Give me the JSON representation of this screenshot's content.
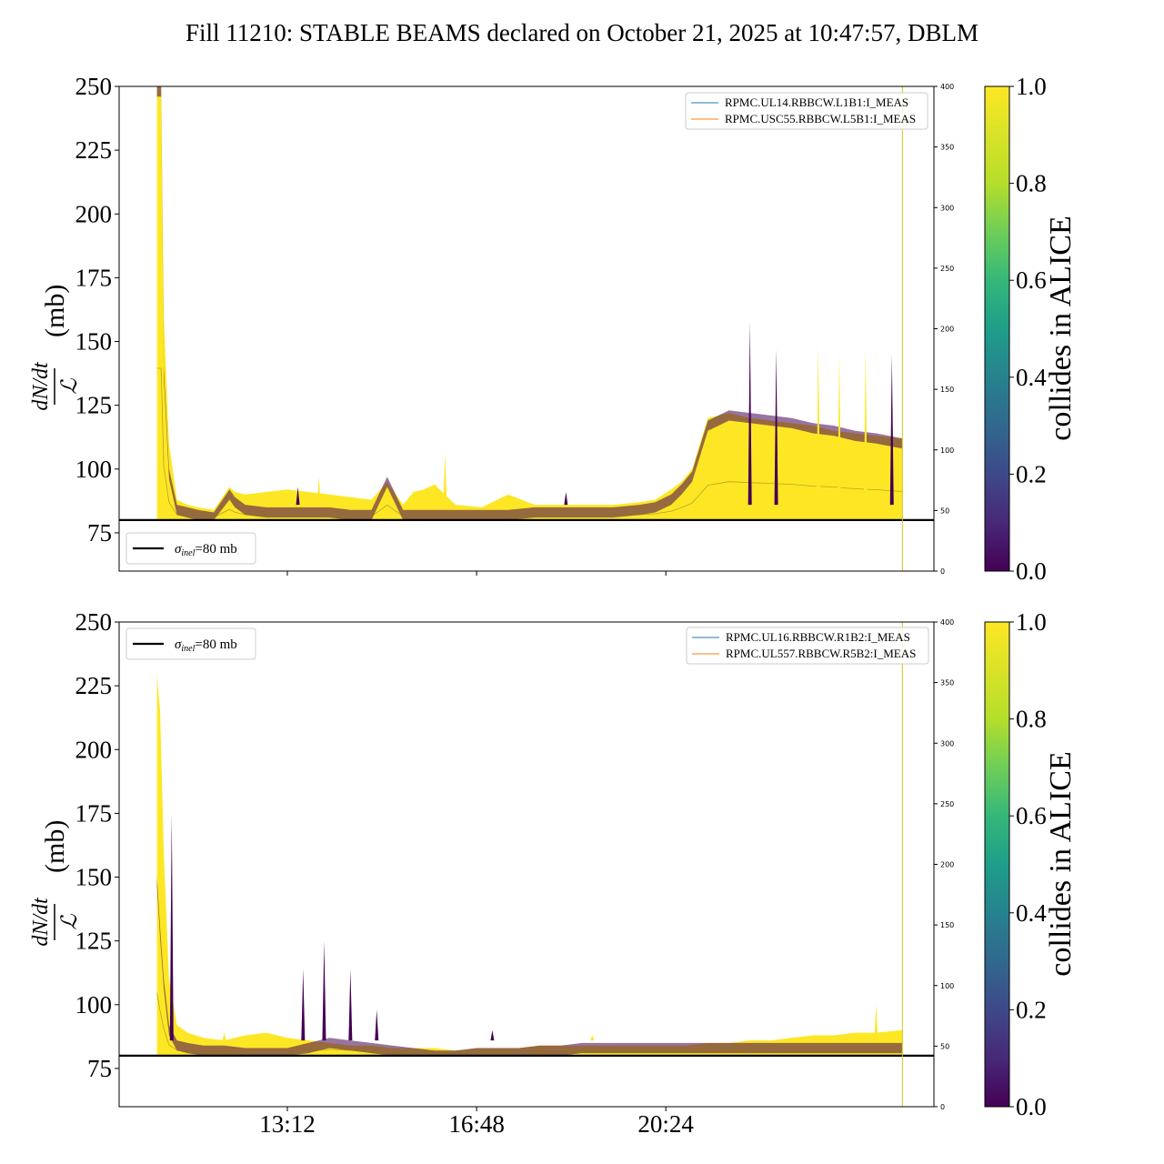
{
  "title": "Fill 11210: STABLE BEAMS declared on October 21, 2025 at 10:47:57, DBLM",
  "colors": {
    "yellow": "#fde725",
    "purple": "#440154",
    "blue_line": "#1f77b4",
    "orange_line": "#ff7f0e",
    "ref_line": "#000000"
  },
  "chart_data": [
    {
      "type": "area",
      "ylabel_numerator": "dN/dt",
      "ylabel_denominator": "ℒ",
      "ylabel_unit": "(mb)",
      "ylim": [
        60,
        250
      ],
      "yticks": [
        "75",
        "100",
        "125",
        "150",
        "175",
        "200",
        "225",
        "250"
      ],
      "right_ylim": [
        0,
        400
      ],
      "right_yticks": [
        "0",
        "50",
        "100",
        "150",
        "200",
        "250",
        "300",
        "350",
        "400"
      ],
      "xlim_hours": [
        10.0,
        25.5
      ],
      "xticks": [],
      "legend_lines": [
        "RPMC.UL14.RBBCW.L1B1:I_MEAS",
        "RPMC.USC55.RBBCW.L5B1:I_MEAS"
      ],
      "legend_sigma": "σinel=80 mb",
      "legend_sigma_sub": "inel",
      "legend_sigma_tail": "=80 mb",
      "reference_line": 80,
      "marker_line_hour": 24.9,
      "envelope": {
        "x": [
          10.72,
          10.8,
          10.85,
          10.95,
          11.1,
          11.3,
          11.5,
          11.8,
          12.1,
          12.2,
          12.4,
          12.8,
          13.2,
          13.6,
          14.0,
          14.4,
          14.8,
          15.1,
          15.4,
          15.6,
          15.8,
          16.0,
          16.4,
          16.9,
          17.4,
          17.9,
          18.4,
          18.9,
          19.4,
          19.9,
          20.2,
          20.5,
          20.7,
          20.9,
          21.2,
          21.6,
          22.0,
          22.4,
          22.8,
          23.2,
          23.6,
          24.0,
          24.4,
          24.9
        ],
        "top": [
          250,
          250,
          160,
          110,
          88,
          86,
          85,
          84,
          93,
          91,
          90,
          91,
          92,
          91,
          90,
          89,
          88,
          95,
          86,
          91,
          92,
          94,
          86,
          85,
          90,
          86,
          86,
          86,
          86,
          87,
          88,
          92,
          95,
          100,
          120,
          122,
          120,
          119,
          118,
          117,
          115,
          114,
          113,
          112
        ],
        "purple_top": [
          250,
          250,
          140,
          100,
          86,
          85,
          84,
          83,
          92,
          89,
          86,
          85,
          85,
          85,
          85,
          84,
          84,
          97,
          84,
          84,
          84,
          84,
          84,
          84,
          84,
          85,
          85,
          85,
          85,
          86,
          87,
          90,
          94,
          99,
          119,
          123,
          122,
          121,
          120,
          118,
          117,
          115,
          114,
          112
        ]
      },
      "spikes": [
        {
          "x": 22.0,
          "y": 158,
          "series": "purple"
        },
        {
          "x": 22.5,
          "y": 147,
          "series": "purple"
        },
        {
          "x": 23.3,
          "y": 149,
          "series": "yellow"
        },
        {
          "x": 23.7,
          "y": 145,
          "series": "yellow"
        },
        {
          "x": 24.2,
          "y": 147,
          "series": "yellow"
        },
        {
          "x": 24.7,
          "y": 145,
          "series": "purple"
        },
        {
          "x": 13.8,
          "y": 97,
          "series": "yellow"
        },
        {
          "x": 13.4,
          "y": 93,
          "series": "purple"
        },
        {
          "x": 16.2,
          "y": 106,
          "series": "yellow"
        },
        {
          "x": 18.5,
          "y": 91,
          "series": "purple"
        }
      ]
    },
    {
      "type": "area",
      "ylabel_numerator": "dN/dt",
      "ylabel_denominator": "ℒ",
      "ylabel_unit": "(mb)",
      "ylim": [
        60,
        250
      ],
      "yticks": [
        "75",
        "100",
        "125",
        "150",
        "175",
        "200",
        "225",
        "250"
      ],
      "right_ylim": [
        0,
        400
      ],
      "right_yticks": [
        "0",
        "50",
        "100",
        "150",
        "200",
        "250",
        "300",
        "350",
        "400"
      ],
      "xlim_hours": [
        10.0,
        25.5
      ],
      "xticks": [
        "13:12",
        "16:48",
        "20:24"
      ],
      "xtick_hours": [
        13.2,
        16.8,
        20.4
      ],
      "legend_lines": [
        "RPMC.UL16.RBBCW.R1B2:I_MEAS",
        "RPMC.UL557.RBBCW.R5B2:I_MEAS"
      ],
      "legend_sigma": "σinel=80 mb",
      "legend_sigma_sub": "inel",
      "legend_sigma_tail": "=80 mb",
      "reference_line": 80,
      "marker_line_hour": 24.9,
      "envelope": {
        "x": [
          10.72,
          10.78,
          10.85,
          10.95,
          11.1,
          11.3,
          11.6,
          12.0,
          12.4,
          12.8,
          13.2,
          13.6,
          14.0,
          14.4,
          14.8,
          15.2,
          15.6,
          16.0,
          16.4,
          16.8,
          17.2,
          17.6,
          18.0,
          18.4,
          18.8,
          19.2,
          19.6,
          20.0,
          20.4,
          20.8,
          21.2,
          21.6,
          22.0,
          22.4,
          22.8,
          23.2,
          23.6,
          24.0,
          24.4,
          24.9
        ],
        "top": [
          229,
          215,
          160,
          110,
          92,
          89,
          87,
          86,
          88,
          89,
          87,
          86,
          85,
          84,
          84,
          83,
          83,
          83,
          82,
          83,
          83,
          83,
          84,
          84,
          84,
          84,
          84,
          84,
          84,
          84,
          85,
          85,
          86,
          86,
          87,
          88,
          88,
          89,
          89,
          90
        ],
        "purple_top": [
          150,
          130,
          110,
          92,
          86,
          85,
          84,
          84,
          83,
          83,
          83,
          85,
          87,
          86,
          85,
          84,
          83,
          82,
          82,
          83,
          83,
          83,
          84,
          84,
          85,
          85,
          85,
          85,
          85,
          85,
          85,
          85,
          85,
          85,
          85,
          85,
          85,
          85,
          85,
          85
        ]
      },
      "spikes": [
        {
          "x": 11.0,
          "y": 175,
          "series": "purple"
        },
        {
          "x": 13.5,
          "y": 114,
          "series": "purple"
        },
        {
          "x": 13.9,
          "y": 125,
          "series": "purple"
        },
        {
          "x": 14.4,
          "y": 114,
          "series": "purple"
        },
        {
          "x": 14.9,
          "y": 98,
          "series": "purple"
        },
        {
          "x": 12.0,
          "y": 89,
          "series": "yellow"
        },
        {
          "x": 24.4,
          "y": 100,
          "series": "yellow"
        },
        {
          "x": 17.1,
          "y": 90,
          "series": "purple"
        },
        {
          "x": 19.0,
          "y": 88,
          "series": "yellow"
        }
      ]
    }
  ],
  "colorbar": {
    "label": "collides in ALICE",
    "ticks": [
      "0.0",
      "0.2",
      "0.4",
      "0.6",
      "0.8",
      "1.0"
    ],
    "range": [
      0.0,
      1.0
    ]
  }
}
